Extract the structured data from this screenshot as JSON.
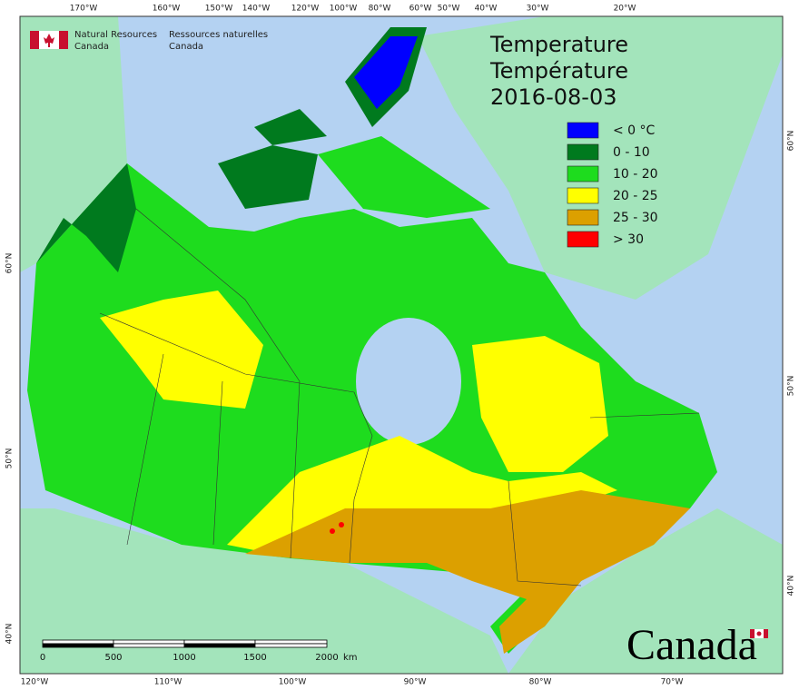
{
  "header": {
    "org_en": [
      "Natural Resources",
      "Canada"
    ],
    "org_fr": [
      "Ressources naturelles",
      "Canada"
    ]
  },
  "title": [
    "Temperature",
    "Température",
    "2016-08-03"
  ],
  "legend": [
    {
      "label": "< 0 °C",
      "color": "#0000ff"
    },
    {
      "label": "0 - 10",
      "color": "#007a1e"
    },
    {
      "label": "10 - 20",
      "color": "#1edc1e"
    },
    {
      "label": "20 - 25",
      "color": "#ffff00"
    },
    {
      "label": "25 - 30",
      "color": "#dca000"
    },
    {
      "label": "> 30",
      "color": "#ff0000"
    }
  ],
  "graticule": {
    "top": [
      "170°W",
      "160°W",
      "150°W",
      "140°W",
      "120°W",
      "100°W",
      "80°W",
      "60°W",
      "50°W",
      "40°W",
      "30°W",
      "20°W"
    ],
    "bottom": [
      "120°W",
      "110°W",
      "100°W",
      "90°W",
      "80°W",
      "70°W"
    ],
    "left": [
      "60°N",
      "50°N",
      "40°N"
    ],
    "right": [
      "60°N",
      "50°N",
      "40°N"
    ]
  },
  "scale_bar": {
    "labels": [
      "0",
      "500",
      "1000",
      "1500",
      "2000"
    ],
    "unit": "km"
  },
  "wordmark": "Canada"
}
